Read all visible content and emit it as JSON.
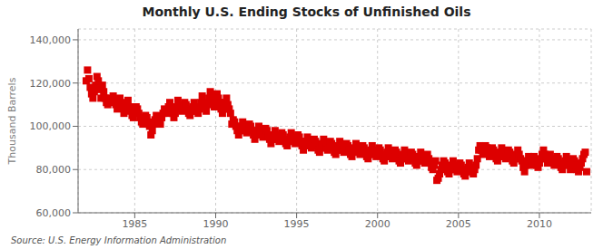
{
  "chart_data": {
    "type": "scatter",
    "title": "Monthly U.S. Ending Stocks of Unfinished Oils",
    "ylabel": "Thousand Barrels",
    "annotations": [
      "Source: U.S. Energy Information Administration"
    ],
    "color": "#dd0000",
    "marker": "square",
    "grid": true,
    "xlim": [
      1981.5,
      2013.2
    ],
    "ylim": [
      60000,
      145000
    ],
    "xticks": [
      1985,
      1990,
      1995,
      2000,
      2005,
      2010
    ],
    "yticks": [
      {
        "value": 60000,
        "label": "60,000"
      },
      {
        "value": 80000,
        "label": "80,000"
      },
      {
        "value": 100000,
        "label": "100,000"
      },
      {
        "value": 120000,
        "label": "120,000"
      },
      {
        "value": 140000,
        "label": "140,000"
      }
    ],
    "x": [
      1982.0,
      1982.083,
      1982.167,
      1982.25,
      1982.333,
      1982.417,
      1982.5,
      1982.583,
      1982.667,
      1982.75,
      1982.833,
      1982.917,
      1983.0,
      1983.083,
      1983.167,
      1983.25,
      1983.333,
      1983.417,
      1983.5,
      1983.583,
      1983.667,
      1983.75,
      1983.833,
      1983.917,
      1984.0,
      1984.083,
      1984.167,
      1984.25,
      1984.333,
      1984.417,
      1984.5,
      1984.583,
      1984.667,
      1984.75,
      1984.833,
      1984.917,
      1985.0,
      1985.083,
      1985.167,
      1985.25,
      1985.333,
      1985.417,
      1985.5,
      1985.583,
      1985.667,
      1985.75,
      1985.833,
      1985.917,
      1986.0,
      1986.083,
      1986.167,
      1986.25,
      1986.333,
      1986.417,
      1986.5,
      1986.583,
      1986.667,
      1986.75,
      1986.833,
      1986.917,
      1987.0,
      1987.083,
      1987.167,
      1987.25,
      1987.333,
      1987.417,
      1987.5,
      1987.583,
      1987.667,
      1987.75,
      1987.833,
      1987.917,
      1988.0,
      1988.083,
      1988.167,
      1988.25,
      1988.333,
      1988.417,
      1988.5,
      1988.583,
      1988.667,
      1988.75,
      1988.833,
      1988.917,
      1989.0,
      1989.083,
      1989.167,
      1989.25,
      1989.333,
      1989.417,
      1989.5,
      1989.583,
      1989.667,
      1989.75,
      1989.833,
      1989.917,
      1990.0,
      1990.083,
      1990.167,
      1990.25,
      1990.333,
      1990.417,
      1990.5,
      1990.583,
      1990.667,
      1990.75,
      1990.833,
      1990.917,
      1991.0,
      1991.083,
      1991.167,
      1991.25,
      1991.333,
      1991.417,
      1991.5,
      1991.583,
      1991.667,
      1991.75,
      1991.833,
      1991.917,
      1992.0,
      1992.083,
      1992.167,
      1992.25,
      1992.333,
      1992.417,
      1992.5,
      1992.583,
      1992.667,
      1992.75,
      1992.833,
      1992.917,
      1993.0,
      1993.083,
      1993.167,
      1993.25,
      1993.333,
      1993.417,
      1993.5,
      1993.583,
      1993.667,
      1993.75,
      1993.833,
      1993.917,
      1994.0,
      1994.083,
      1994.167,
      1994.25,
      1994.333,
      1994.417,
      1994.5,
      1994.583,
      1994.667,
      1994.75,
      1994.833,
      1994.917,
      1995.0,
      1995.083,
      1995.167,
      1995.25,
      1995.333,
      1995.417,
      1995.5,
      1995.583,
      1995.667,
      1995.75,
      1995.833,
      1995.917,
      1996.0,
      1996.083,
      1996.167,
      1996.25,
      1996.333,
      1996.417,
      1996.5,
      1996.583,
      1996.667,
      1996.75,
      1996.833,
      1996.917,
      1997.0,
      1997.083,
      1997.167,
      1997.25,
      1997.333,
      1997.417,
      1997.5,
      1997.583,
      1997.667,
      1997.75,
      1997.833,
      1997.917,
      1998.0,
      1998.083,
      1998.167,
      1998.25,
      1998.333,
      1998.417,
      1998.5,
      1998.583,
      1998.667,
      1998.75,
      1998.833,
      1998.917,
      1999.0,
      1999.083,
      1999.167,
      1999.25,
      1999.333,
      1999.417,
      1999.5,
      1999.583,
      1999.667,
      1999.75,
      1999.833,
      1999.917,
      2000.0,
      2000.083,
      2000.167,
      2000.25,
      2000.333,
      2000.417,
      2000.5,
      2000.583,
      2000.667,
      2000.75,
      2000.833,
      2000.917,
      2001.0,
      2001.083,
      2001.167,
      2001.25,
      2001.333,
      2001.417,
      2001.5,
      2001.583,
      2001.667,
      2001.75,
      2001.833,
      2001.917,
      2002.0,
      2002.083,
      2002.167,
      2002.25,
      2002.333,
      2002.417,
      2002.5,
      2002.583,
      2002.667,
      2002.75,
      2002.833,
      2002.917,
      2003.0,
      2003.083,
      2003.167,
      2003.25,
      2003.333,
      2003.417,
      2003.5,
      2003.583,
      2003.667,
      2003.75,
      2003.833,
      2003.917,
      2004.0,
      2004.083,
      2004.167,
      2004.25,
      2004.333,
      2004.417,
      2004.5,
      2004.583,
      2004.667,
      2004.75,
      2004.833,
      2004.917,
      2005.0,
      2005.083,
      2005.167,
      2005.25,
      2005.333,
      2005.417,
      2005.5,
      2005.583,
      2005.667,
      2005.75,
      2005.833,
      2005.917,
      2006.0,
      2006.083,
      2006.167,
      2006.25,
      2006.333,
      2006.417,
      2006.5,
      2006.583,
      2006.667,
      2006.75,
      2006.833,
      2006.917,
      2007.0,
      2007.083,
      2007.167,
      2007.25,
      2007.333,
      2007.417,
      2007.5,
      2007.583,
      2007.667,
      2007.75,
      2007.833,
      2007.917,
      2008.0,
      2008.083,
      2008.167,
      2008.25,
      2008.333,
      2008.417,
      2008.5,
      2008.583,
      2008.667,
      2008.75,
      2008.833,
      2008.917,
      2009.0,
      2009.083,
      2009.167,
      2009.25,
      2009.333,
      2009.417,
      2009.5,
      2009.583,
      2009.667,
      2009.75,
      2009.833,
      2009.917,
      2010.0,
      2010.083,
      2010.167,
      2010.25,
      2010.333,
      2010.417,
      2010.5,
      2010.583,
      2010.667,
      2010.75,
      2010.833,
      2010.917,
      2011.0,
      2011.083,
      2011.167,
      2011.25,
      2011.333,
      2011.417,
      2011.5,
      2011.583,
      2011.667,
      2011.75,
      2011.833,
      2011.917,
      2012.0,
      2012.083,
      2012.167,
      2012.25,
      2012.333,
      2012.417,
      2012.5,
      2012.583,
      2012.667,
      2012.75,
      2012.833,
      2012.917
    ],
    "values": [
      121000,
      126000,
      122000,
      118000,
      115000,
      113000,
      116000,
      119000,
      123000,
      121000,
      117000,
      113000,
      119000,
      116000,
      113000,
      111000,
      110000,
      112000,
      113000,
      111000,
      114000,
      112000,
      110000,
      108000,
      111000,
      113000,
      111000,
      109000,
      106000,
      108000,
      110000,
      112000,
      109000,
      107000,
      105000,
      104000,
      107000,
      109000,
      108000,
      106000,
      104000,
      102000,
      101000,
      103000,
      105000,
      104000,
      102000,
      100000,
      96000,
      98000,
      101000,
      103000,
      105000,
      104000,
      102000,
      101000,
      104000,
      106000,
      108000,
      107000,
      106000,
      109000,
      111000,
      108000,
      106000,
      104000,
      106000,
      109000,
      112000,
      110000,
      108000,
      107000,
      109000,
      111000,
      110000,
      108000,
      106000,
      105000,
      107000,
      109000,
      111000,
      109000,
      107000,
      106000,
      108000,
      111000,
      114000,
      111000,
      109000,
      107000,
      110000,
      113000,
      116000,
      113000,
      111000,
      109000,
      112000,
      115000,
      113000,
      111000,
      108000,
      106000,
      108000,
      111000,
      113000,
      110000,
      108000,
      106000,
      101000,
      103000,
      102000,
      100000,
      98000,
      96000,
      98000,
      100000,
      102000,
      100000,
      98000,
      97000,
      99000,
      101000,
      100000,
      98000,
      96000,
      94000,
      96000,
      98000,
      100000,
      98000,
      96000,
      95000,
      97000,
      99000,
      98000,
      96000,
      94000,
      92000,
      94000,
      96000,
      98000,
      96000,
      94000,
      93000,
      95000,
      97000,
      96000,
      94000,
      92000,
      91000,
      93000,
      95000,
      97000,
      95000,
      93000,
      92000,
      94000,
      96000,
      95000,
      93000,
      91000,
      89000,
      91000,
      93000,
      95000,
      93000,
      91000,
      90000,
      92000,
      94000,
      93000,
      91000,
      89000,
      88000,
      90000,
      92000,
      94000,
      92000,
      90000,
      89000,
      91000,
      93000,
      92000,
      90000,
      88000,
      87000,
      89000,
      91000,
      93000,
      91000,
      89000,
      88000,
      90000,
      92000,
      91000,
      89000,
      87000,
      86000,
      88000,
      90000,
      92000,
      90000,
      88000,
      87000,
      89000,
      91000,
      90000,
      88000,
      86000,
      85000,
      87000,
      89000,
      91000,
      89000,
      87000,
      86000,
      88000,
      90000,
      89000,
      87000,
      85000,
      84000,
      86000,
      88000,
      90000,
      88000,
      86000,
      85000,
      87000,
      89000,
      88000,
      86000,
      84000,
      83000,
      85000,
      87000,
      89000,
      87000,
      85000,
      84000,
      86000,
      88000,
      87000,
      85000,
      83000,
      82000,
      84000,
      86000,
      88000,
      86000,
      84000,
      83000,
      85000,
      87000,
      85000,
      83000,
      81000,
      80000,
      82000,
      84000,
      75000,
      76000,
      78000,
      80000,
      82000,
      84000,
      83000,
      81000,
      79000,
      78000,
      80000,
      82000,
      84000,
      82000,
      80000,
      79000,
      81000,
      83000,
      82000,
      80000,
      78000,
      77000,
      79000,
      81000,
      83000,
      81000,
      79000,
      78000,
      80000,
      82000,
      85000,
      89000,
      91000,
      89000,
      87000,
      89000,
      91000,
      90000,
      88000,
      86000,
      88000,
      90000,
      89000,
      87000,
      85000,
      84000,
      86000,
      88000,
      90000,
      88000,
      86000,
      85000,
      87000,
      89000,
      88000,
      86000,
      84000,
      83000,
      85000,
      87000,
      89000,
      87000,
      85000,
      84000,
      81000,
      79000,
      82000,
      84000,
      86000,
      84000,
      82000,
      84000,
      86000,
      84000,
      82000,
      81000,
      83000,
      85000,
      87000,
      89000,
      87000,
      85000,
      83000,
      85000,
      87000,
      85000,
      83000,
      82000,
      84000,
      86000,
      85000,
      83000,
      81000,
      80000,
      82000,
      84000,
      86000,
      84000,
      82000,
      80000,
      83000,
      85000,
      84000,
      82000,
      80000,
      79000,
      81000,
      83000,
      85000,
      87000,
      88000,
      79000
    ]
  }
}
